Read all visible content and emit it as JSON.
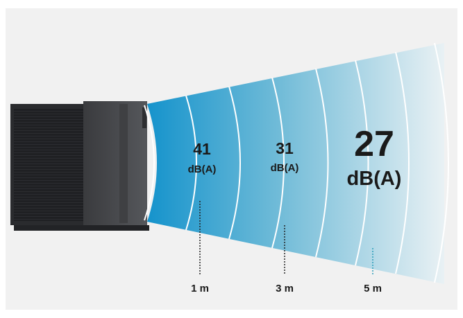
{
  "levels": [
    {
      "value": "41",
      "unit": "dB(A)",
      "distance": "1 m"
    },
    {
      "value": "31",
      "unit": "dB(A)",
      "distance": "3 m"
    },
    {
      "value": "27",
      "unit": "dB(A)",
      "distance": "5 m"
    }
  ]
}
